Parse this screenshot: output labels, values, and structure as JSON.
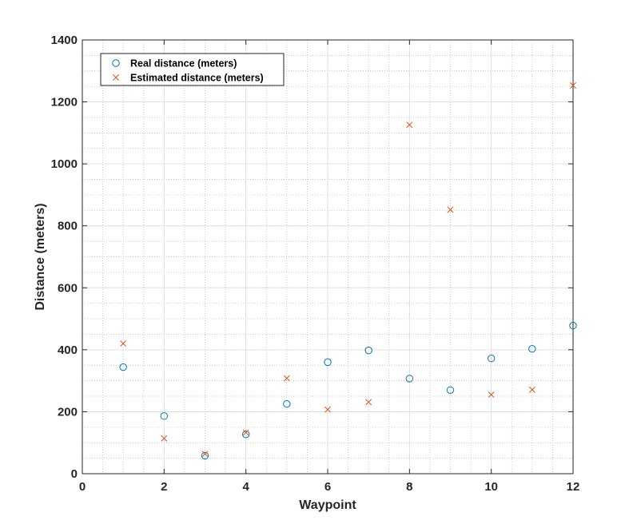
{
  "chart_data": {
    "type": "scatter",
    "title": "",
    "xlabel": "Waypoint",
    "ylabel": "Distance (meters)",
    "xlim": [
      0,
      12
    ],
    "ylim": [
      0,
      1400
    ],
    "xticks": [
      0,
      2,
      4,
      6,
      8,
      10,
      12
    ],
    "yticks": [
      0,
      200,
      400,
      600,
      800,
      1000,
      1200,
      1400
    ],
    "grid": true,
    "minor_grid": true,
    "legend_position": "top-left",
    "series": [
      {
        "name": "Real distance (meters)",
        "marker": "circle",
        "color": "#0072BD",
        "x": [
          1,
          2,
          3,
          4,
          5,
          6,
          7,
          8,
          9,
          10,
          11,
          12
        ],
        "y": [
          344,
          186,
          58,
          127,
          225,
          360,
          398,
          307,
          270,
          372,
          403,
          478
        ]
      },
      {
        "name": "Estimated distance (meters)",
        "marker": "x",
        "color": "#D95319",
        "x": [
          1,
          2,
          3,
          4,
          5,
          6,
          7,
          8,
          9,
          10,
          11,
          12
        ],
        "y": [
          420,
          114,
          64,
          133,
          308,
          207,
          231,
          1126,
          852,
          255,
          271,
          1253
        ]
      }
    ]
  }
}
